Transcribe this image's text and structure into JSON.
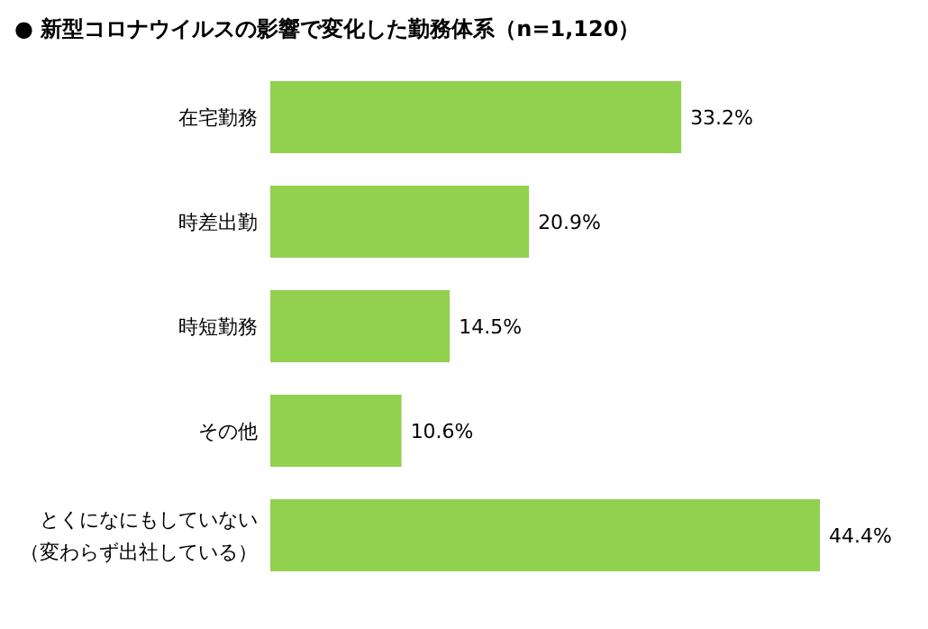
{
  "chart_data": {
    "type": "bar",
    "orientation": "horizontal",
    "title": "●  新型コロナウイルスの影響で変化した勤務体系（n=1,120）",
    "categories": [
      "在宅勤務",
      "時差出勤",
      "時短勤務",
      "その他",
      "とくになにもしていない（変わらず出社している）"
    ],
    "values": [
      33.2,
      20.9,
      14.5,
      10.6,
      44.4
    ],
    "value_labels": [
      "33.2%",
      "20.9%",
      "14.5%",
      "10.6%",
      "44.4%"
    ],
    "color": "#92d050"
  }
}
